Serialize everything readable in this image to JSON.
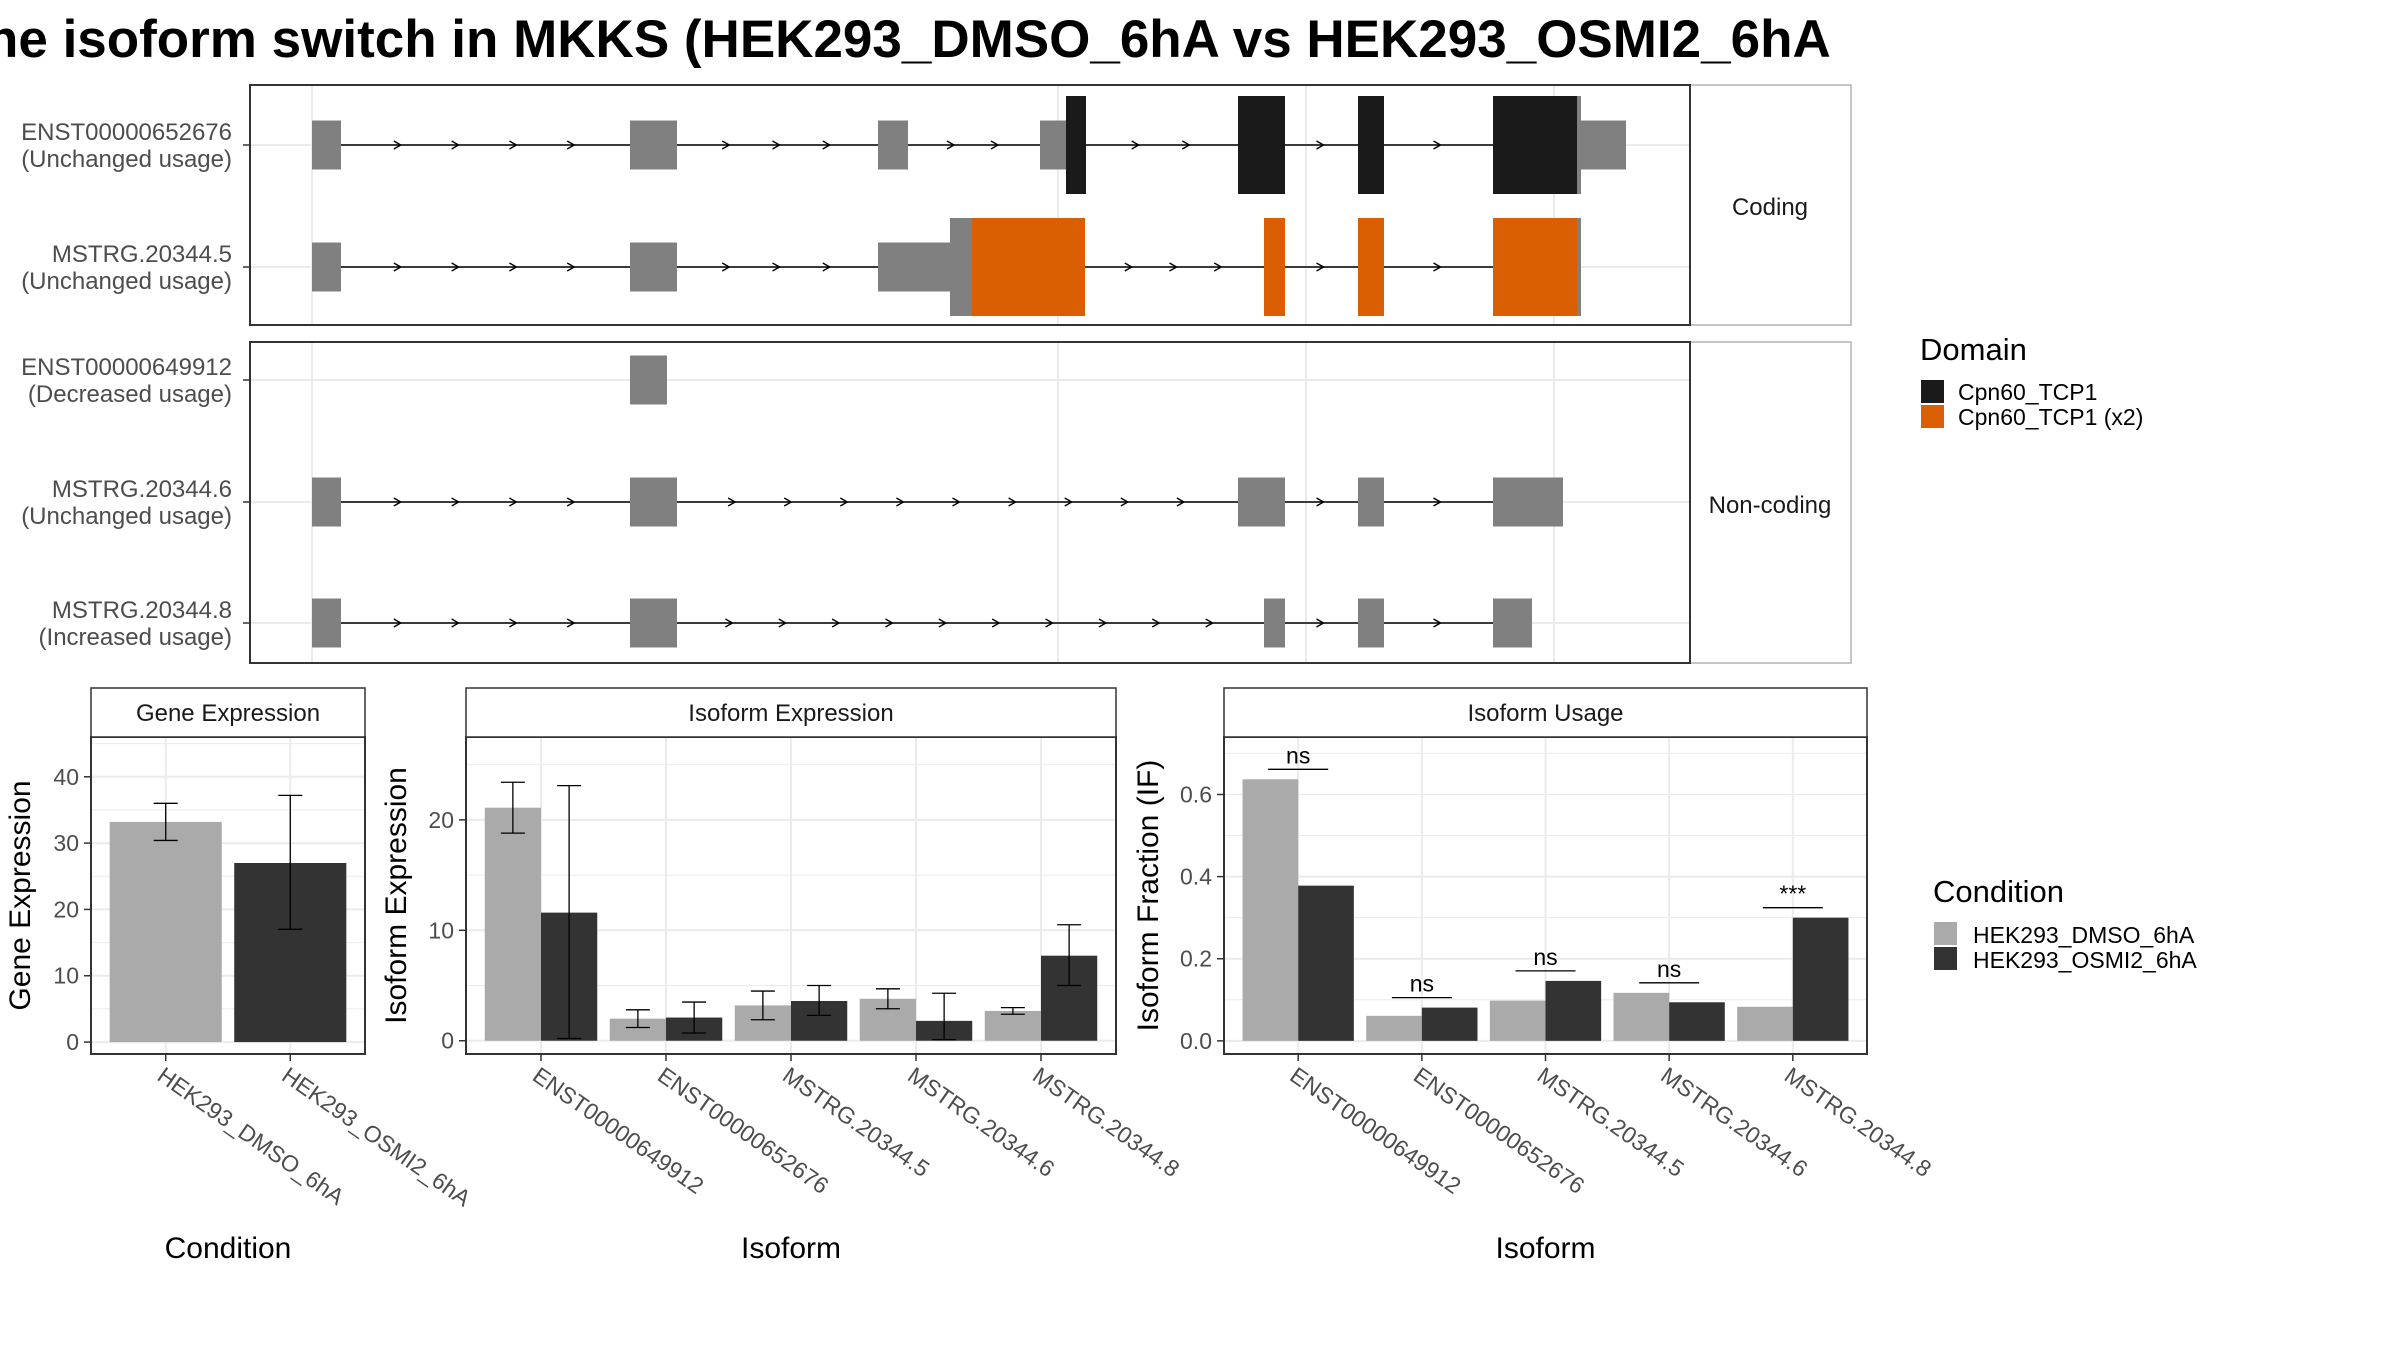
{
  "chart_data": [
    {
      "type": "gene-structure",
      "title": "he isoform switch in MKKS (HEK293_DMSO_6hA vs HEK293_OSMI2_6hA",
      "facets": [
        "Coding",
        "Non-coding"
      ],
      "colors": {
        "exon": "#808080",
        "domain": "#1a1a1a",
        "domain_x2": "#d95f02",
        "intron": "#000000"
      },
      "legend": {
        "title": "Domain",
        "entries": [
          {
            "label": "Cpn60_TCP1",
            "color": "#1a1a1a"
          },
          {
            "label": "Cpn60_TCP1 (x2)",
            "color": "#d95f02"
          }
        ]
      },
      "isoforms": [
        {
          "facet": "Coding",
          "id": "ENST00000652676",
          "usage": "(Unchanged usage)",
          "domain": "Cpn60_TCP1"
        },
        {
          "facet": "Coding",
          "id": "MSTRG.20344.5",
          "usage": "(Unchanged usage)",
          "domain": "Cpn60_TCP1 (x2)"
        },
        {
          "facet": "Non-coding",
          "id": "ENST00000649912",
          "usage": "(Decreased usage)",
          "domain": ""
        },
        {
          "facet": "Non-coding",
          "id": "MSTRG.20344.6",
          "usage": "(Unchanged usage)",
          "domain": ""
        },
        {
          "facet": "Non-coding",
          "id": "MSTRG.20344.8",
          "usage": "(Increased usage)",
          "domain": ""
        }
      ]
    },
    {
      "type": "bar",
      "title": "Gene Expression",
      "xlabel": "Condition",
      "ylabel": "Gene Expression",
      "categories": [
        "HEK293_DMSO_6hA",
        "HEK293_OSMI2_6hA"
      ],
      "values": [
        33.2,
        27.0
      ],
      "err_low": [
        30.4,
        17.0
      ],
      "err_high": [
        36.0,
        37.2
      ],
      "ylim": [
        -1.8,
        46
      ],
      "yticks": [
        0,
        10,
        20,
        30,
        40
      ]
    },
    {
      "type": "bar",
      "title": "Isoform Expression",
      "xlabel": "Isoform",
      "ylabel": "Isoform Expression",
      "categories": [
        "ENST00000649912",
        "ENST00000652676",
        "MSTRG.20344.5",
        "MSTRG.20344.6",
        "MSTRG.20344.8"
      ],
      "series": [
        {
          "name": "HEK293_DMSO_6hA",
          "values": [
            21.1,
            2.0,
            3.2,
            3.8,
            2.7
          ],
          "err_low": [
            18.8,
            1.2,
            1.9,
            2.9,
            2.4
          ],
          "err_high": [
            23.4,
            2.8,
            4.5,
            4.7,
            3.0
          ]
        },
        {
          "name": "HEK293_OSMI2_6hA",
          "values": [
            11.6,
            2.1,
            3.6,
            1.8,
            7.7
          ],
          "err_low": [
            0.2,
            0.7,
            2.3,
            0.1,
            5.0
          ],
          "err_high": [
            23.1,
            3.5,
            5.0,
            4.3,
            10.5
          ]
        }
      ],
      "ylim": [
        -1.2,
        27.5
      ],
      "yticks": [
        0,
        10,
        20
      ]
    },
    {
      "type": "bar",
      "title": "Isoform Usage",
      "xlabel": "Isoform",
      "ylabel": "Isoform Fraction (IF)",
      "categories": [
        "ENST00000649912",
        "ENST00000652676",
        "MSTRG.20344.5",
        "MSTRG.20344.6",
        "MSTRG.20344.8"
      ],
      "series": [
        {
          "name": "HEK293_DMSO_6hA",
          "values": [
            0.637,
            0.061,
            0.098,
            0.117,
            0.083
          ]
        },
        {
          "name": "HEK293_OSMI2_6hA",
          "values": [
            0.378,
            0.081,
            0.146,
            0.094,
            0.3
          ]
        }
      ],
      "significance": [
        "ns",
        "ns",
        "ns",
        "ns",
        "***"
      ],
      "ylim": [
        -0.032,
        0.74
      ],
      "yticks": [
        "0.0",
        "0.2",
        "0.4",
        "0.6"
      ],
      "legend": {
        "title": "Condition",
        "entries": [
          {
            "label": "HEK293_DMSO_6hA",
            "color": "#aaaaaa"
          },
          {
            "label": "HEK293_OSMI2_6hA",
            "color": "#333333"
          }
        ]
      }
    }
  ]
}
